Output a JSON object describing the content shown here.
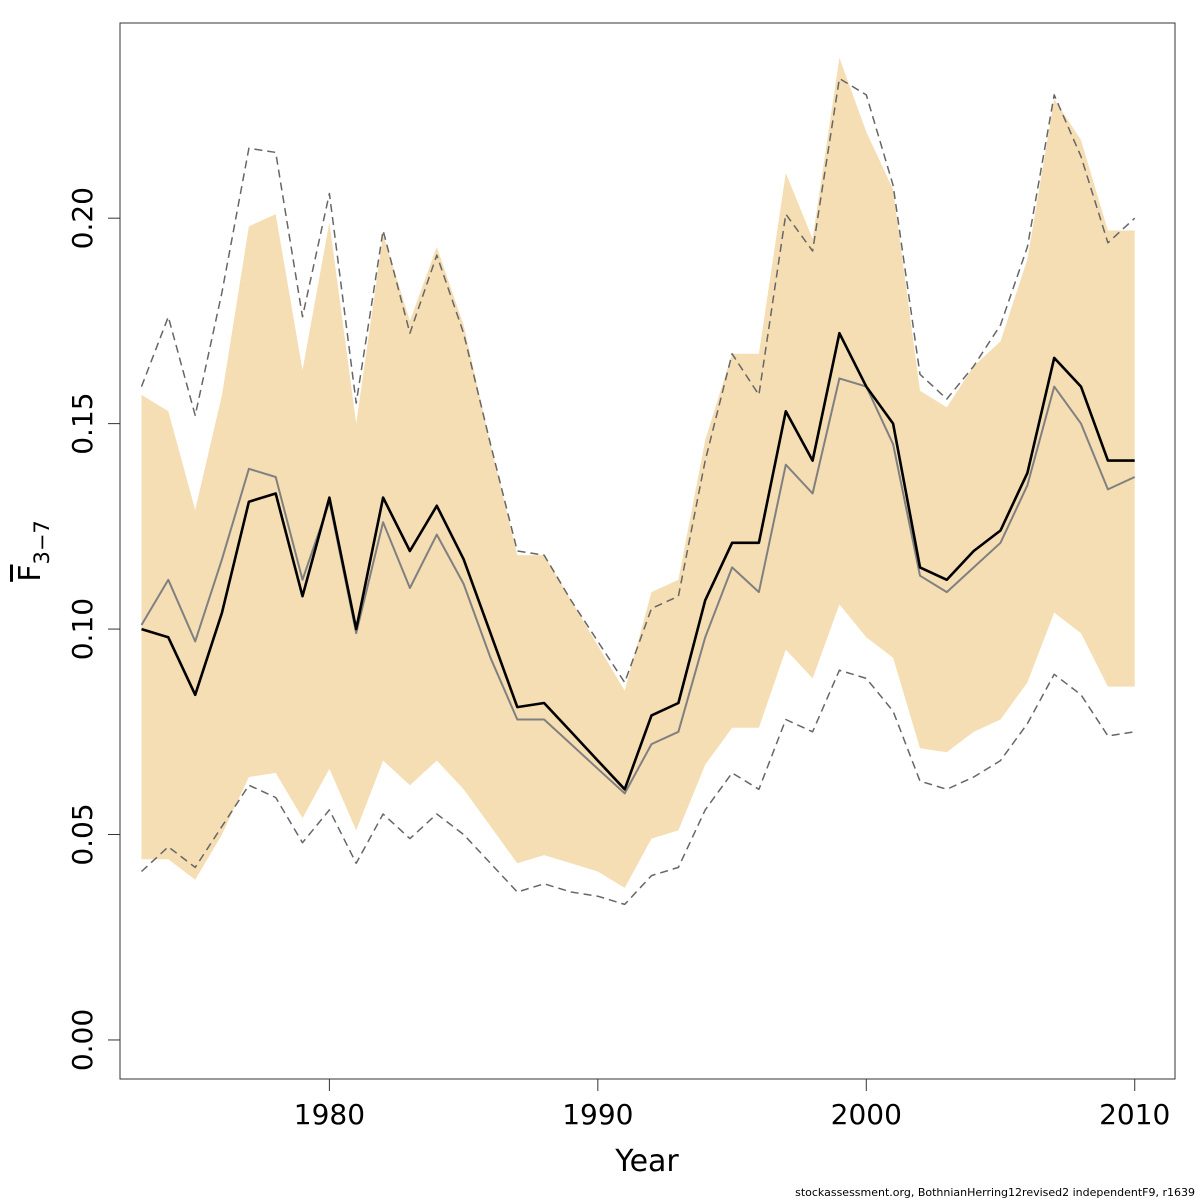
{
  "chart_data": {
    "type": "line",
    "xlabel": "Year",
    "ylabel": "F",
    "ylabel_subscript": "3−7",
    "xlim": [
      1972.2,
      2011.5
    ],
    "ylim": [
      -0.0095,
      0.2475
    ],
    "x_ticks": [
      1980,
      1990,
      2000,
      2010
    ],
    "x_tick_labels": [
      "1980",
      "1990",
      "2000",
      "2010"
    ],
    "y_ticks": [
      0.0,
      0.05,
      0.1,
      0.15,
      0.2
    ],
    "y_tick_labels": [
      "0.00",
      "0.05",
      "0.10",
      "0.15",
      "0.20"
    ],
    "grid": false,
    "colors": {
      "band": "#f5deb3",
      "estimate": "#000000",
      "comparison": "#808080",
      "bounds": "#666666"
    },
    "x": [
      1973,
      1974,
      1975,
      1976,
      1977,
      1978,
      1979,
      1980,
      1981,
      1982,
      1983,
      1984,
      1985,
      1986,
      1987,
      1988,
      1989,
      1990,
      1991,
      1992,
      1993,
      1994,
      1995,
      1996,
      1997,
      1998,
      1999,
      2000,
      2001,
      2002,
      2003,
      2004,
      2005,
      2006,
      2007,
      2008,
      2009,
      2010
    ],
    "series": [
      {
        "role": "band-upper",
        "values": [
          0.157,
          0.153,
          0.129,
          0.157,
          0.198,
          0.201,
          0.163,
          0.199,
          0.15,
          0.196,
          0.175,
          0.193,
          0.174,
          0.145,
          0.118,
          0.118,
          0.107,
          0.096,
          0.085,
          0.109,
          0.112,
          0.146,
          0.167,
          0.167,
          0.211,
          0.195,
          0.239,
          0.221,
          0.207,
          0.158,
          0.154,
          0.164,
          0.17,
          0.19,
          0.229,
          0.219,
          0.197,
          0.197
        ]
      },
      {
        "role": "band-lower",
        "values": [
          0.044,
          0.044,
          0.039,
          0.05,
          0.064,
          0.065,
          0.054,
          0.066,
          0.051,
          0.068,
          0.062,
          0.068,
          0.061,
          0.052,
          0.043,
          0.045,
          0.043,
          0.041,
          0.037,
          0.049,
          0.051,
          0.067,
          0.076,
          0.076,
          0.095,
          0.088,
          0.106,
          0.098,
          0.093,
          0.071,
          0.07,
          0.075,
          0.078,
          0.087,
          0.104,
          0.099,
          0.086,
          0.086
        ]
      },
      {
        "role": "estimate",
        "values": [
          0.1,
          0.098,
          0.084,
          0.104,
          0.131,
          0.133,
          0.108,
          0.132,
          0.1,
          0.132,
          0.119,
          0.13,
          0.117,
          0.099,
          0.081,
          0.082,
          0.075,
          0.068,
          0.061,
          0.079,
          0.082,
          0.107,
          0.121,
          0.121,
          0.153,
          0.141,
          0.172,
          0.159,
          0.15,
          0.115,
          0.112,
          0.119,
          0.124,
          0.138,
          0.166,
          0.159,
          0.141,
          0.141
        ]
      },
      {
        "role": "comparison",
        "values": [
          0.101,
          0.112,
          0.097,
          0.117,
          0.139,
          0.137,
          0.112,
          0.131,
          0.099,
          0.126,
          0.11,
          0.123,
          0.111,
          0.093,
          0.078,
          0.078,
          0.072,
          0.066,
          0.06,
          0.072,
          0.075,
          0.098,
          0.115,
          0.109,
          0.14,
          0.133,
          0.161,
          0.159,
          0.145,
          0.113,
          0.109,
          0.115,
          0.121,
          0.135,
          0.159,
          0.15,
          0.134,
          0.137
        ]
      },
      {
        "role": "comparison-upper",
        "values": [
          0.159,
          0.176,
          0.152,
          0.182,
          0.217,
          0.216,
          0.176,
          0.206,
          0.155,
          0.197,
          0.172,
          0.191,
          0.172,
          0.145,
          0.119,
          0.118,
          0.107,
          0.097,
          0.087,
          0.105,
          0.108,
          0.141,
          0.167,
          0.157,
          0.201,
          0.192,
          0.234,
          0.23,
          0.208,
          0.162,
          0.156,
          0.164,
          0.174,
          0.193,
          0.23,
          0.215,
          0.194,
          0.2
        ]
      },
      {
        "role": "comparison-lower",
        "values": [
          0.041,
          0.047,
          0.042,
          0.052,
          0.062,
          0.059,
          0.048,
          0.056,
          0.043,
          0.055,
          0.049,
          0.055,
          0.05,
          0.043,
          0.036,
          0.038,
          0.036,
          0.035,
          0.033,
          0.04,
          0.042,
          0.056,
          0.065,
          0.061,
          0.078,
          0.075,
          0.09,
          0.088,
          0.08,
          0.063,
          0.061,
          0.064,
          0.068,
          0.077,
          0.089,
          0.084,
          0.074,
          0.075
        ]
      }
    ]
  },
  "footer": "stockassessment.org, BothnianHerring12revised2 independentF9, r1639"
}
